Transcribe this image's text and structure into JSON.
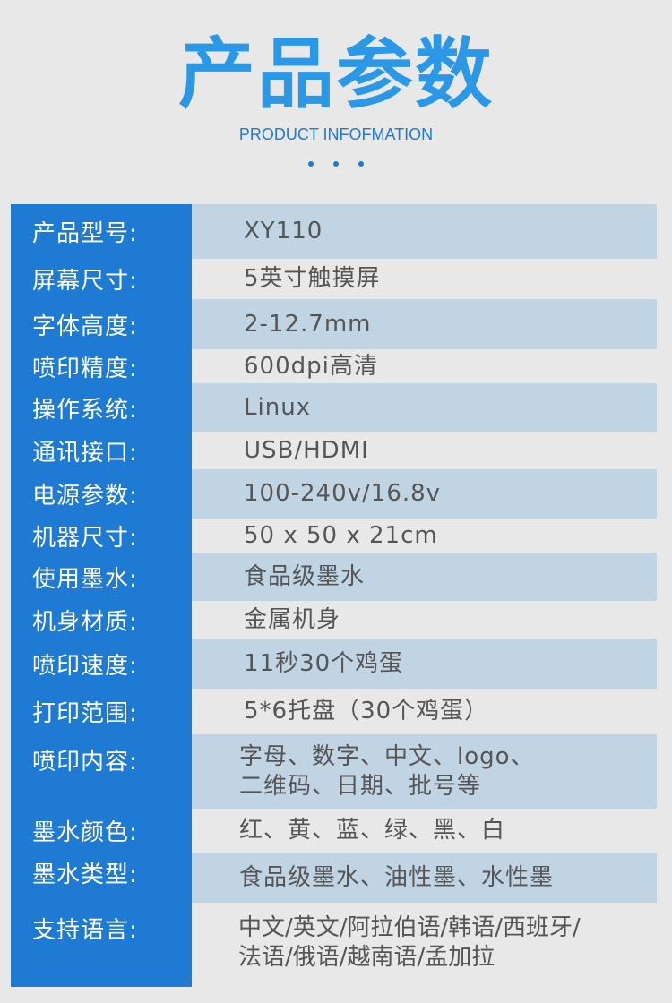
{
  "header": {
    "title": "产品参数",
    "subtitle": "PRODUCT INFOFMATION"
  },
  "colors": {
    "accent": "#1e7ad2",
    "row_highlight": "#c1d4e3",
    "background": "#e8e8e8"
  },
  "specs": [
    {
      "label": "产品型号:",
      "value": "XY110"
    },
    {
      "label": "屏幕尺寸:",
      "value": "5英寸触摸屏"
    },
    {
      "label": "字体高度:",
      "value": "2-12.7mm"
    },
    {
      "label": "喷印精度:",
      "value": "600dpi高清"
    },
    {
      "label": "操作系统:",
      "value": "Linux"
    },
    {
      "label": "通讯接口:",
      "value": "USB/HDMI"
    },
    {
      "label": "电源参数:",
      "value": "100-240v/16.8v"
    },
    {
      "label": "机器尺寸:",
      "value": "50 x 50 x 21cm"
    },
    {
      "label": "使用墨水:",
      "value": "食品级墨水"
    },
    {
      "label": "机身材质:",
      "value": "金属机身"
    },
    {
      "label": "喷印速度:",
      "value": "11秒30个鸡蛋"
    },
    {
      "label": "打印范围:",
      "value": "5*6托盘（30个鸡蛋）"
    },
    {
      "label": "喷印内容:",
      "value": "字母、数字、中文、logo、",
      "value2": "二维码、日期、批号等"
    },
    {
      "label": "墨水颜色:",
      "value": "红、黄、蓝、绿、黑、白"
    },
    {
      "label": "墨水类型:",
      "value": "食品级墨水、油性墨、水性墨"
    },
    {
      "label": "支持语言:",
      "value": "中文/英文/阿拉伯语/韩语/西班牙/",
      "value2": "法语/俄语/越南语/孟加拉"
    }
  ]
}
